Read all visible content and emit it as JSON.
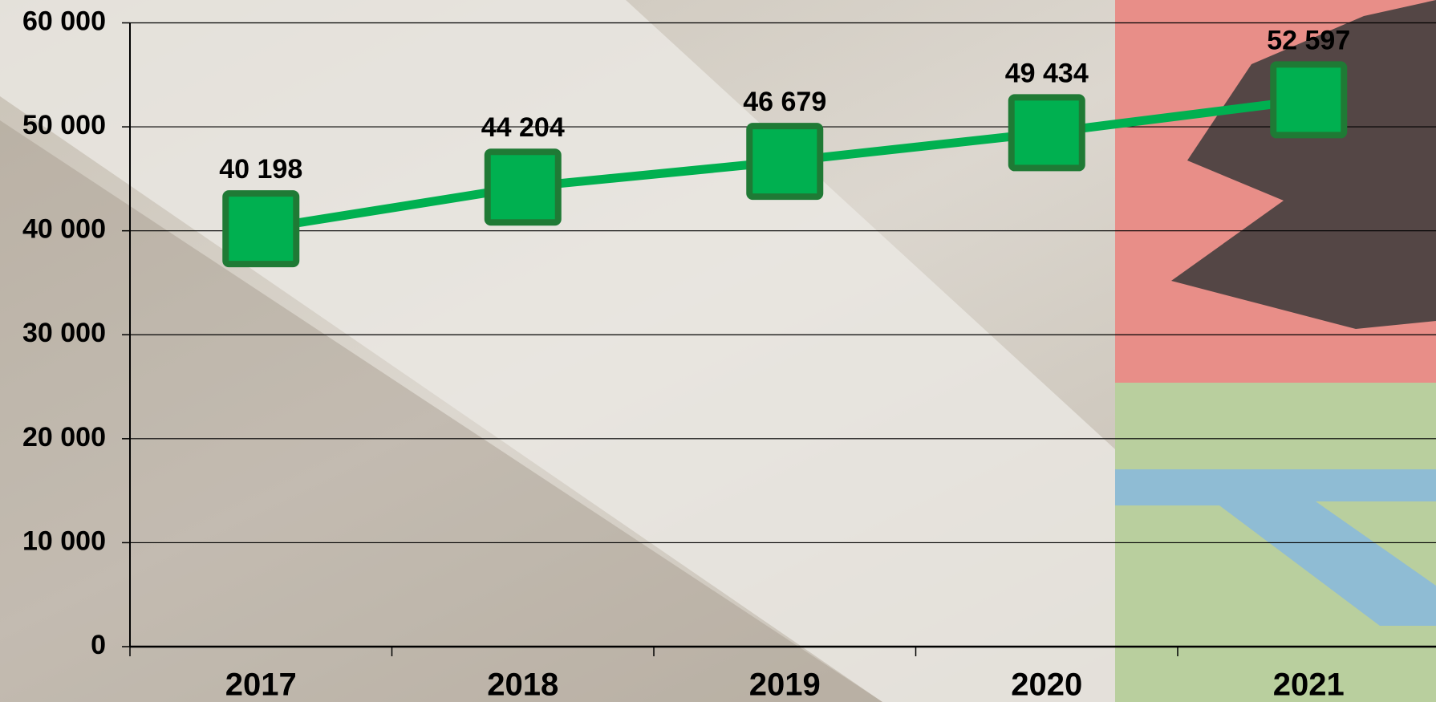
{
  "chart_data": {
    "type": "line",
    "categories": [
      "2017",
      "2018",
      "2019",
      "2020",
      "2021"
    ],
    "values": [
      40198,
      44204,
      46679,
      49434,
      52597
    ],
    "value_labels": [
      "40 198",
      "44 204",
      "46 679",
      "49 434",
      "52 597"
    ],
    "color": "#00b050",
    "ylim": [
      0,
      60000
    ],
    "yticks": [
      0,
      {
        "value": 10000,
        "label": "10 000"
      },
      {
        "value": 20000,
        "label": "20 000"
      },
      {
        "value": 30000,
        "label": "30 000"
      },
      {
        "value": 40000,
        "label": "40 000"
      },
      {
        "value": 50000,
        "label": "50 000"
      },
      {
        "value": 60000,
        "label": "60 000"
      }
    ],
    "grid": true
  }
}
